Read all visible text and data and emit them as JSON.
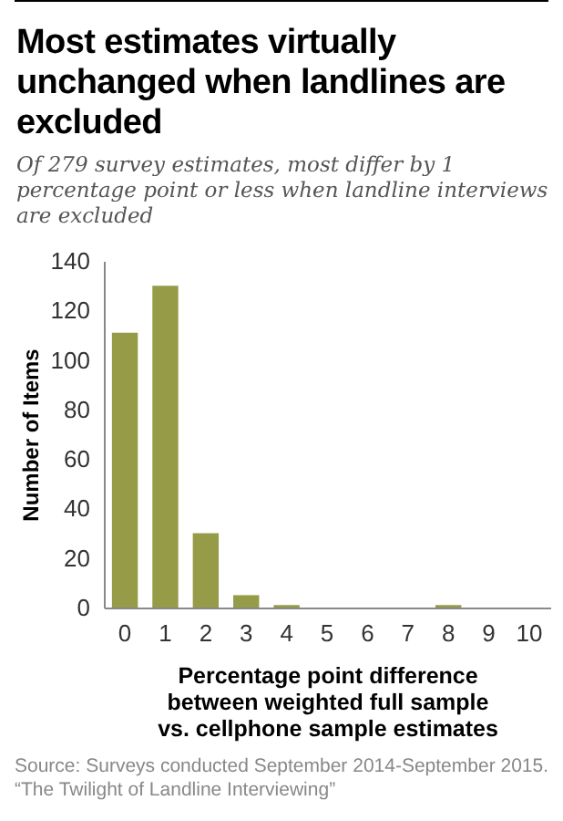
{
  "chart_data": {
    "type": "bar",
    "title": "Most estimates virtually unchanged when landlines are excluded",
    "subtitle": "Of 279 survey estimates, most differ by 1 percentage point or less when landline interviews are excluded",
    "xlabel": "Percentage point difference between weighted full sample vs. cellphone sample estimates",
    "ylabel": "Number of Items",
    "categories": [
      "0",
      "1",
      "2",
      "3",
      "4",
      "5",
      "6",
      "7",
      "8",
      "9",
      "10"
    ],
    "values": [
      111,
      130,
      30,
      5,
      1,
      0,
      0,
      0,
      1,
      0,
      0
    ],
    "color": "#959b47",
    "ylim": [
      0,
      140
    ],
    "yticks": [
      0,
      20,
      40,
      60,
      80,
      100,
      120,
      140
    ],
    "grid": false,
    "annotations": [
      "Source: Surveys conducted September 2014-September 2015.",
      "“The Twilight of Landline Interviewing”"
    ]
  }
}
